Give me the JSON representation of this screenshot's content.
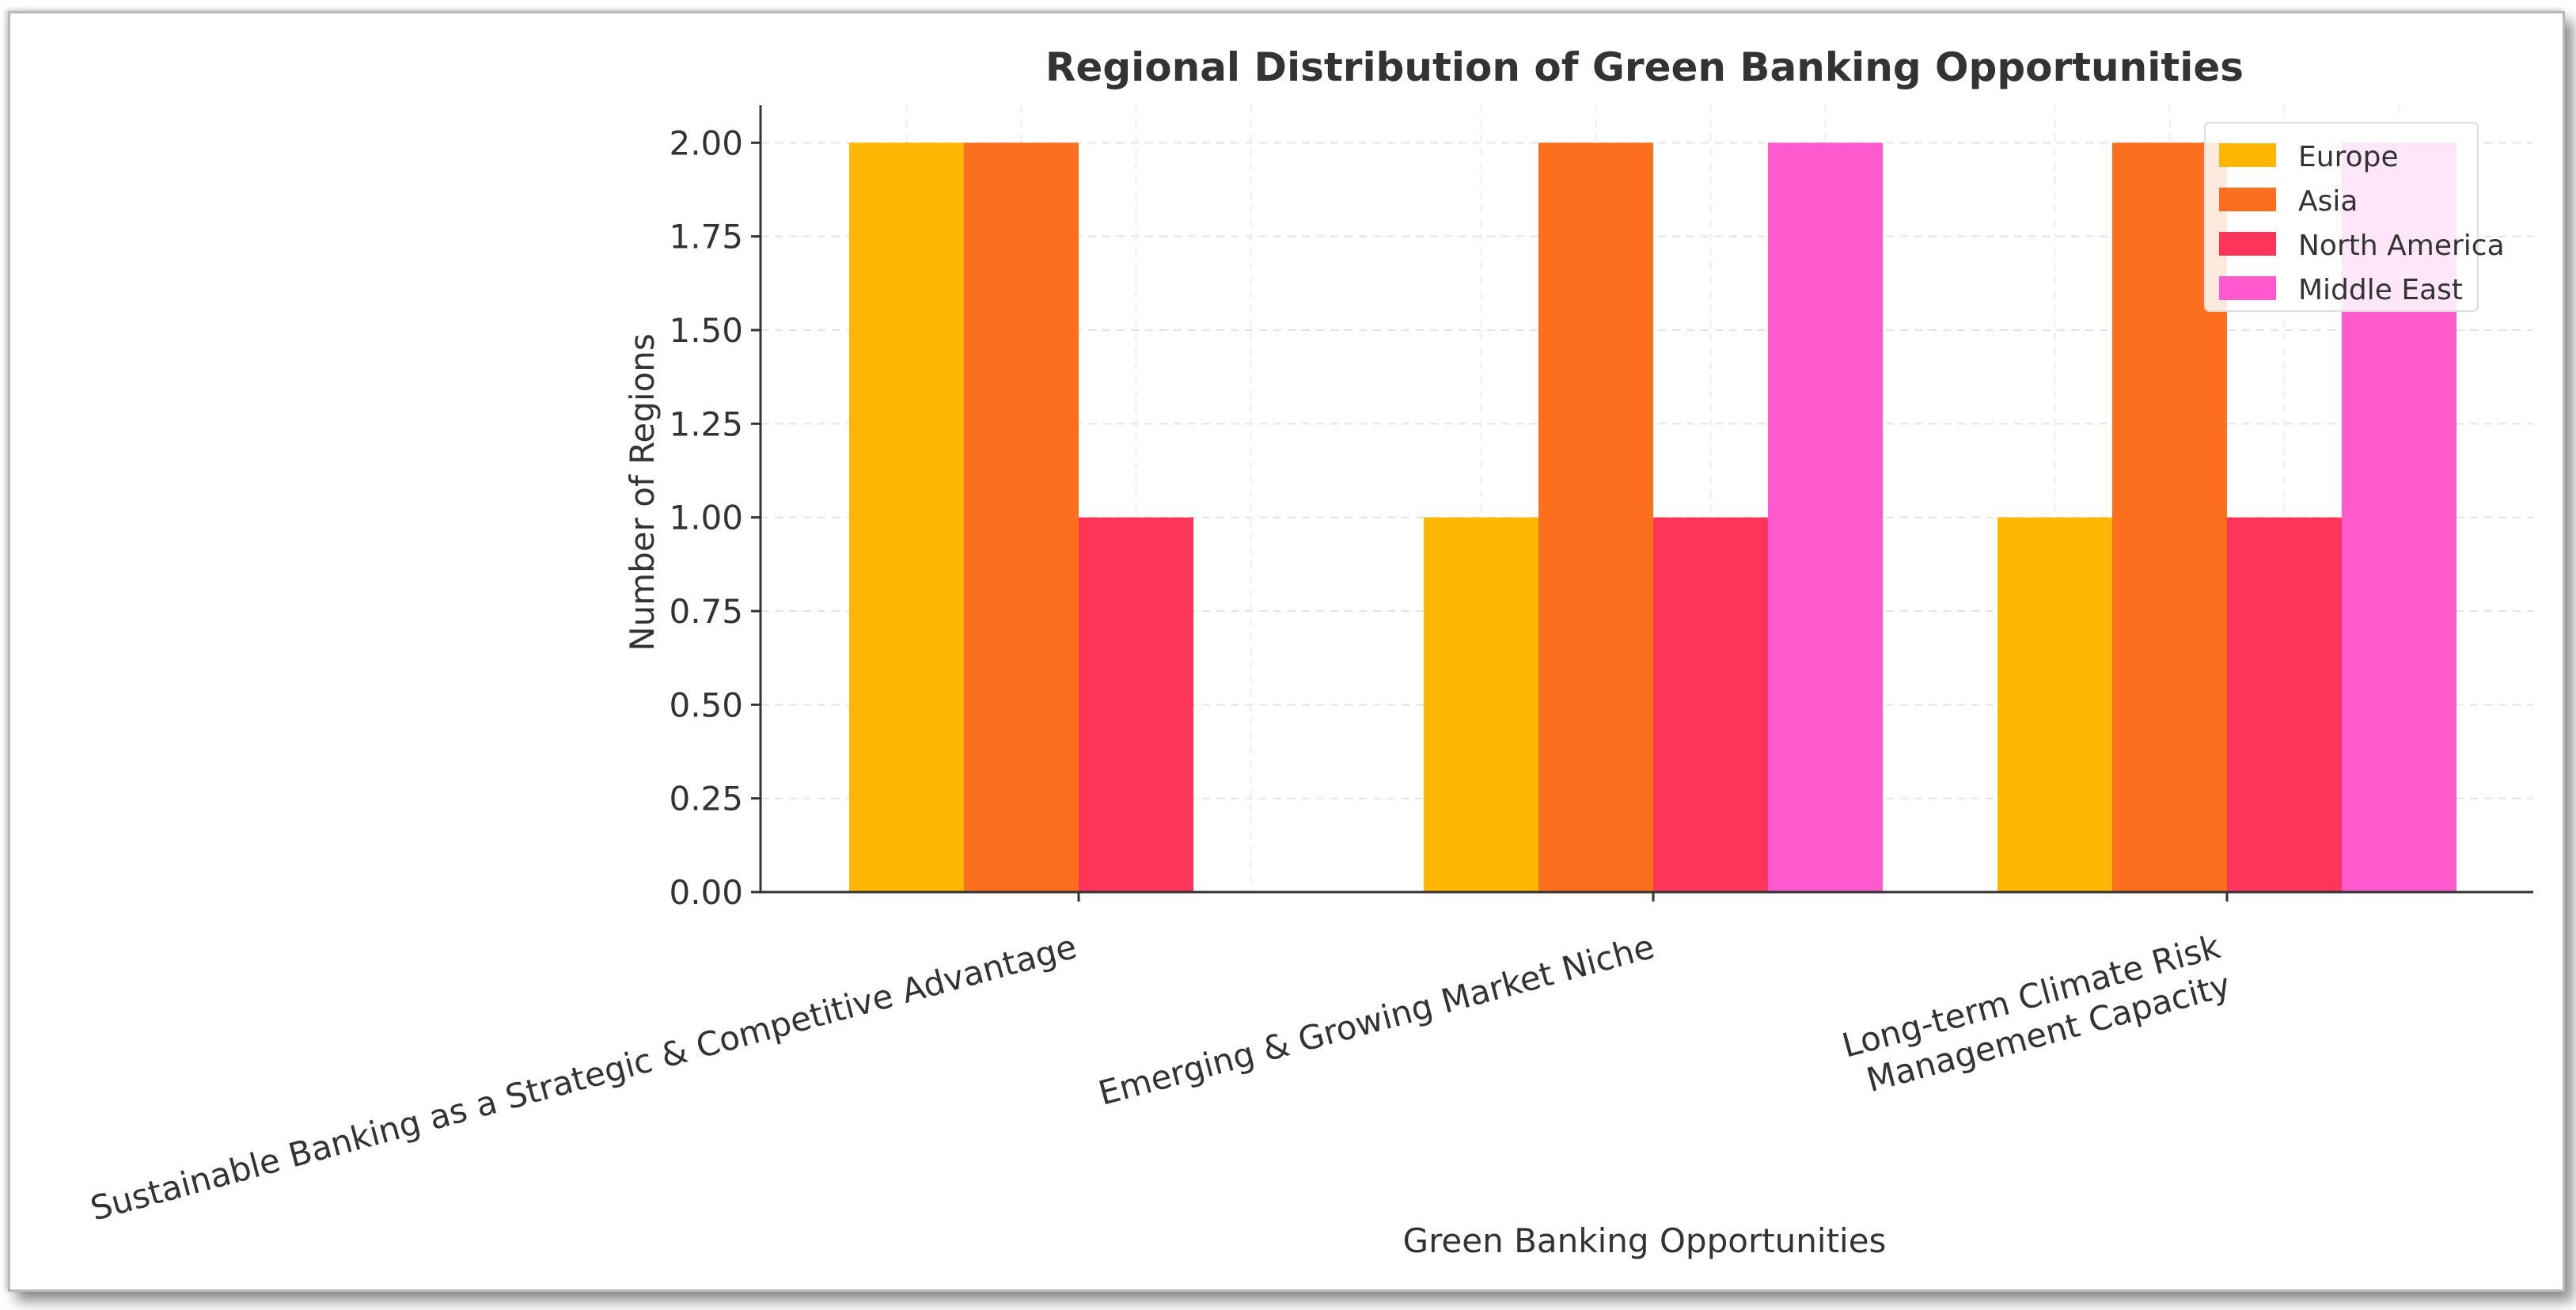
{
  "chart_data": {
    "type": "bar",
    "title": "Regional Distribution of Green Banking Opportunities",
    "xlabel": "Green Banking Opportunities",
    "ylabel": "Number of Regions",
    "ylim": [
      0,
      2.1
    ],
    "yticks": [
      "0.00",
      "0.25",
      "0.50",
      "0.75",
      "1.00",
      "1.25",
      "1.50",
      "1.75",
      "2.00"
    ],
    "grid": true,
    "legend_position": "top-right",
    "categories": [
      [
        "Sustainable Banking as a Strategic & Competitive Advantage"
      ],
      [
        "Emerging & Growing Market Niche"
      ],
      [
        "Long-term Climate Risk",
        "Management Capacity"
      ]
    ],
    "series": [
      {
        "name": "Europe",
        "color": "#FFB703",
        "values": [
          2,
          1,
          1
        ]
      },
      {
        "name": "Asia",
        "color": "#FB6F1E",
        "values": [
          2,
          2,
          2
        ]
      },
      {
        "name": "North America",
        "color": "#FF3459",
        "values": [
          1,
          1,
          1
        ]
      },
      {
        "name": "Middle East",
        "color": "#FF5ACD",
        "values": [
          0,
          2,
          2
        ]
      }
    ]
  }
}
